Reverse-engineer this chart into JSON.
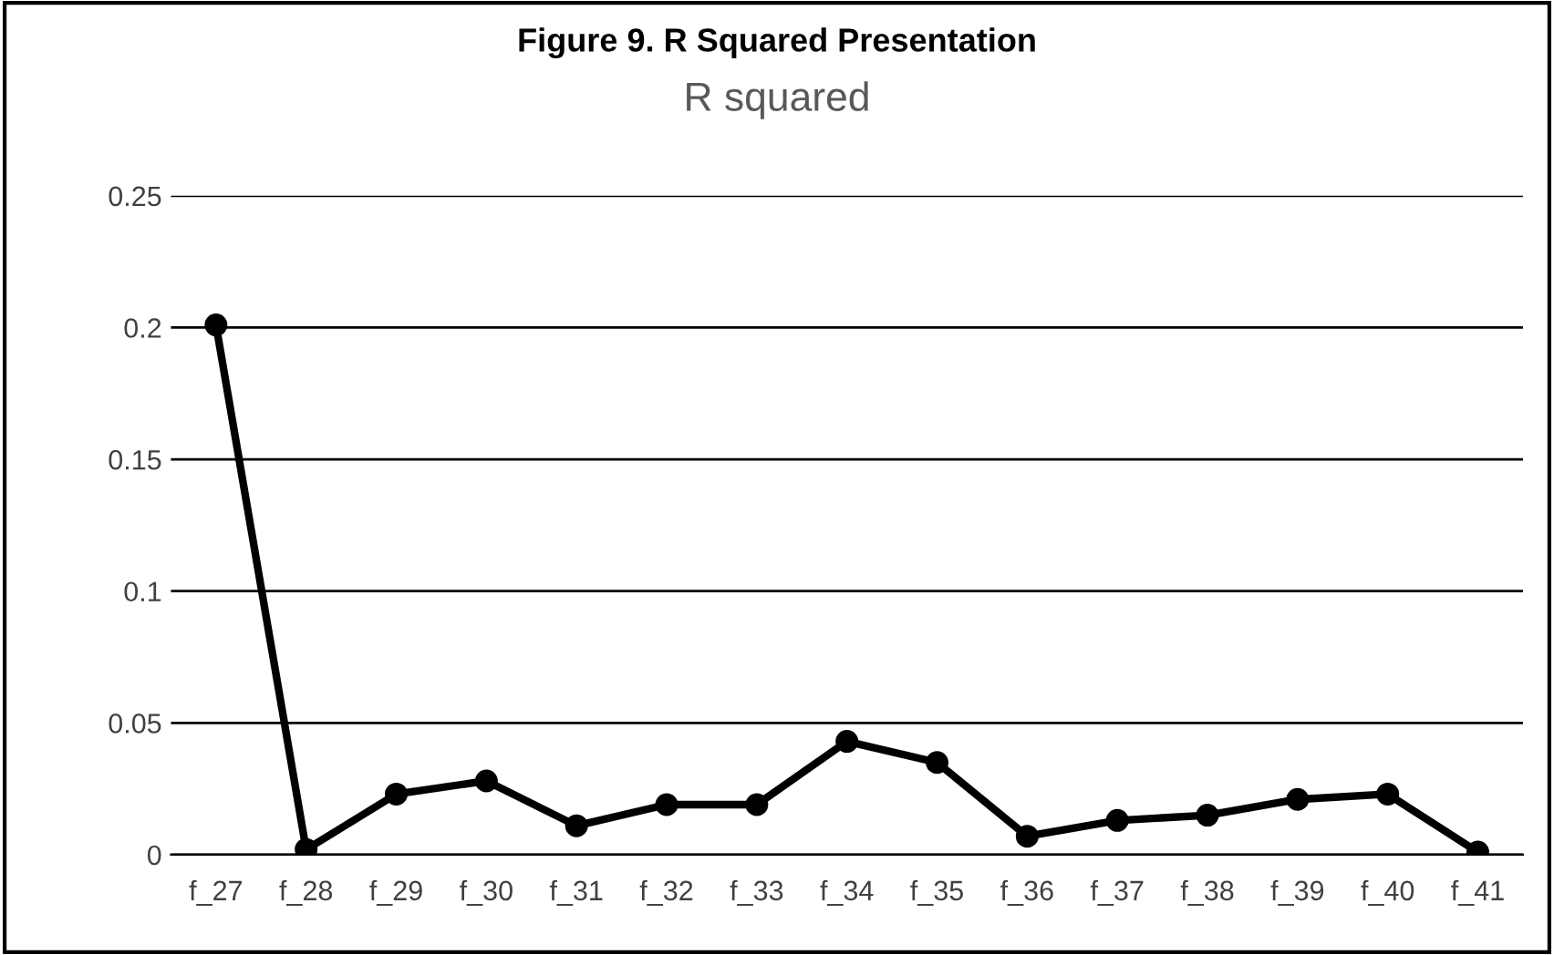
{
  "chart_data": {
    "type": "line",
    "title": "Figure 9. R Squared Presentation",
    "subtitle": "R squared",
    "categories": [
      "f_27",
      "f_28",
      "f_29",
      "f_30",
      "f_31",
      "f_32",
      "f_33",
      "f_34",
      "f_35",
      "f_36",
      "f_37",
      "f_38",
      "f_39",
      "f_40",
      "f_41"
    ],
    "series": [
      {
        "color": "#000000",
        "values": [
          0.201,
          0.002,
          0.023,
          0.028,
          0.011,
          0.019,
          0.019,
          0.043,
          0.035,
          0.007,
          0.013,
          0.015,
          0.021,
          0.023,
          0.001
        ]
      }
    ],
    "ylim": [
      0,
      0.25
    ],
    "yticks": [
      0,
      {
        "value": 0.05,
        "label": "0.05"
      },
      {
        "value": 0.1,
        "label": "0.1"
      },
      {
        "value": 0.15,
        "label": "0.15"
      },
      {
        "value": 0.2,
        "label": "0.2"
      },
      {
        "value": 0.25,
        "label": "0.25"
      }
    ],
    "grid": "y",
    "marker": "circle",
    "line_style": "solid"
  }
}
